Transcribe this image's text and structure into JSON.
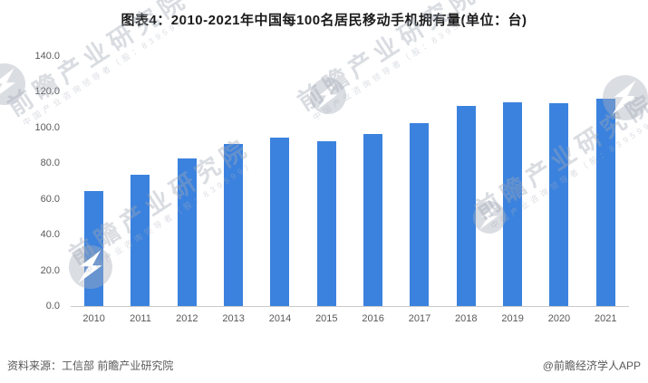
{
  "page_title": "图表4：2010-2021年中国每100名居民移动手机拥有量(单位：台)",
  "chart_data": {
    "type": "bar",
    "title": "图表4：2010-2021年中国每100名居民移动手机拥有量(单位：台)",
    "categories": [
      "2010",
      "2011",
      "2012",
      "2013",
      "2014",
      "2015",
      "2016",
      "2017",
      "2018",
      "2019",
      "2020",
      "2021"
    ],
    "values": [
      64.4,
      73.6,
      82.6,
      90.8,
      94.5,
      92.5,
      96.2,
      102.5,
      112.2,
      114.4,
      113.9,
      116.3
    ],
    "xlabel": "",
    "ylabel": "",
    "ylim": [
      0,
      140
    ],
    "ytick_step": 20,
    "ytick_labels": [
      "0.0",
      "20.0",
      "40.0",
      "60.0",
      "80.0",
      "100.0",
      "120.0",
      "140.0"
    ],
    "grid": false,
    "legend_position": "none",
    "bar_color": "#3B82DE",
    "axis_line_color": "#c9c9c9",
    "tick_label_color": "#595959"
  },
  "footer": {
    "source": "资料来源：工信部 前瞻产业研究院",
    "credit": "@前瞻经济学人APP"
  },
  "watermark": {
    "brand": "前瞻产业研究院",
    "subtitle": "中国产业咨询领导者（股：839599）",
    "logo": "qianzhan-lightning-logo"
  }
}
